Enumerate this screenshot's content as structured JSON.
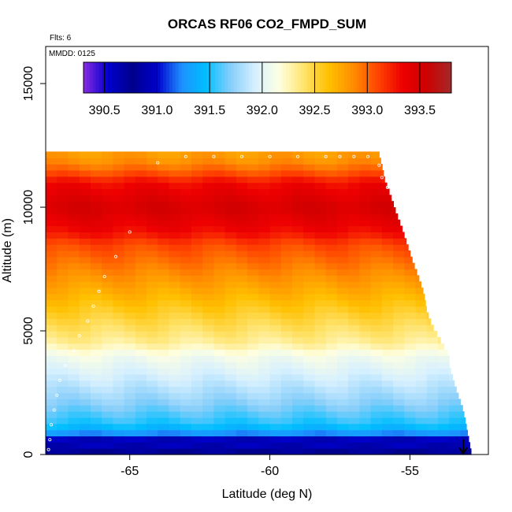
{
  "chart_data": {
    "type": "heatmap",
    "title": "ORCAS RF06 CO2_FMPD_SUM",
    "subtitle_flights": "Flts: 6",
    "subtitle_date": "MMDD: 0125",
    "xlabel": "Latitude (deg N)",
    "ylabel": "Altitude (m)",
    "xlim": [
      -68.0,
      -52.2
    ],
    "ylim": [
      0,
      16500
    ],
    "x_ticks": [
      -65,
      -60,
      -55
    ],
    "x_tick_labels": [
      "-65",
      "-60",
      "-55"
    ],
    "y_ticks": [
      0,
      5000,
      10000,
      15000
    ],
    "y_tick_labels": [
      "0",
      "5000",
      "10000",
      "15000"
    ],
    "colorbar": {
      "min": 390.3,
      "max": 393.8,
      "ticks": [
        390.5,
        391.0,
        391.5,
        392.0,
        392.5,
        393.0,
        393.5
      ],
      "tick_labels": [
        "390.5",
        "391.0",
        "391.5",
        "392.0",
        "392.5",
        "393.0",
        "393.5"
      ],
      "colors": [
        "#8a2be2",
        "#0000cd",
        "#00008b",
        "#0000cd",
        "#1e90ff",
        "#00bfff",
        "#87cefa",
        "#d6f0ff",
        "#ffffe0",
        "#ffe36b",
        "#ffc000",
        "#ff8c00",
        "#ff4500",
        "#ee0000",
        "#cc0000",
        "#a52a2a"
      ]
    },
    "profile": {
      "altitude": [
        0,
        400,
        800,
        1200,
        1600,
        2000,
        2500,
        3000,
        3500,
        4000,
        4500,
        5000,
        5500,
        6000,
        6500,
        7000,
        7500,
        8000,
        8500,
        9000,
        9500,
        10000,
        10500,
        11000,
        11500,
        12000
      ],
      "co2": [
        390.9,
        390.6,
        391.2,
        391.5,
        391.6,
        391.7,
        391.8,
        391.9,
        392.0,
        392.1,
        392.3,
        392.4,
        392.5,
        392.6,
        392.7,
        392.8,
        392.9,
        393.0,
        393.1,
        393.3,
        393.4,
        393.5,
        393.4,
        393.3,
        393.0,
        392.8
      ]
    },
    "coverage_edge": {
      "altitude": [
        0,
        1200,
        1800,
        2800,
        3600,
        4000,
        4600,
        5200,
        5800,
        6500,
        7200,
        7800,
        8500,
        9200,
        9800,
        10500,
        11100,
        11700,
        12100
      ],
      "max_latitude": [
        -52.8,
        -53.0,
        -53.1,
        -53.4,
        -53.6,
        -53.6,
        -53.9,
        -54.2,
        -54.4,
        -54.5,
        -54.7,
        -54.9,
        -55.1,
        -55.3,
        -55.5,
        -55.7,
        -55.9,
        -56.0,
        -56.1
      ]
    },
    "flight_track": {
      "latitude": [
        -67.9,
        -67.85,
        -67.8,
        -67.7,
        -67.6,
        -67.5,
        -67.3,
        -67.0,
        -66.8,
        -66.5,
        -66.3,
        -66.1,
        -65.9,
        -65.5,
        -65.0,
        -64.0,
        -63.0,
        -62.0,
        -61.0,
        -60.0,
        -59.0,
        -58.0,
        -57.5,
        -57.0,
        -56.5,
        -56.1,
        -56.0,
        -55.8,
        -55.6,
        -55.4,
        -55.2,
        -55.0,
        -54.8,
        -54.6,
        -54.4,
        -54.2,
        -54.0,
        -53.8,
        -53.6
      ],
      "altitude": [
        200,
        600,
        1200,
        1800,
        2400,
        3000,
        3600,
        4200,
        4800,
        5400,
        6000,
        6600,
        7200,
        8000,
        9000,
        11800,
        12050,
        12050,
        12050,
        12050,
        12050,
        12050,
        12050,
        12050,
        12050,
        11700,
        11200,
        10800,
        10400,
        10000,
        9600,
        9200,
        8800,
        8200,
        7600,
        6900,
        6200,
        5400,
        4600
      ]
    },
    "flight_end_marker": {
      "latitude": -53.1,
      "altitude_top": 600,
      "altitude_bottom": 0
    }
  }
}
